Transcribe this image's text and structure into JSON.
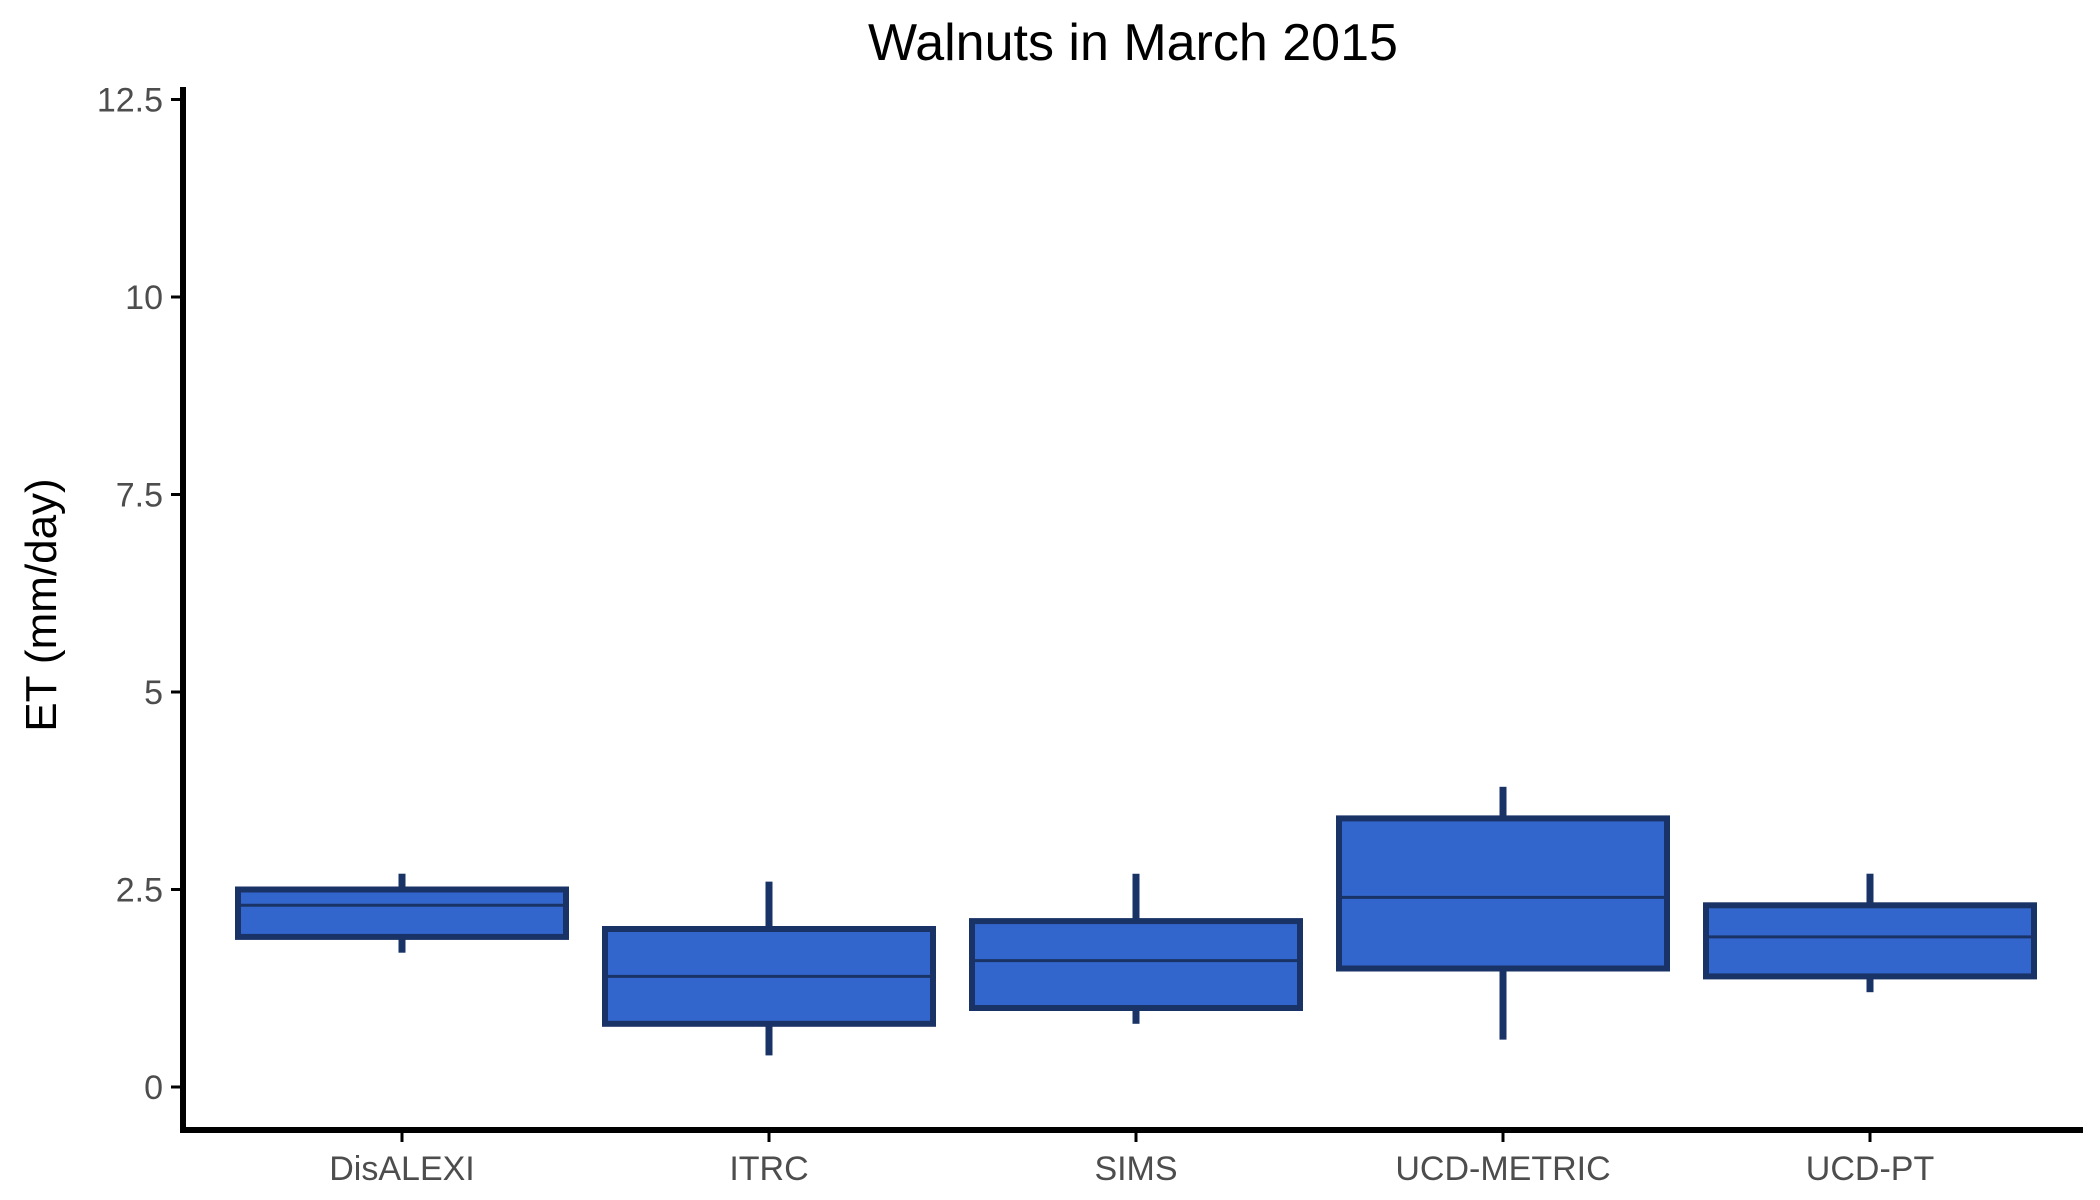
{
  "chart_data": {
    "type": "boxplot",
    "title": "Walnuts in March 2015",
    "xlabel": "",
    "ylabel": "ET (mm/day)",
    "ylim": [
      0,
      12.5
    ],
    "yticks": [
      0,
      2.5,
      5,
      7.5,
      10,
      12.5
    ],
    "ytick_labels": [
      "0",
      "2.5",
      "5",
      "7.5",
      "10",
      "12.5"
    ],
    "grid": false,
    "legend": "none",
    "colors": {
      "fill": "#3366cc",
      "outline": "#1a3366",
      "axis": "#000000"
    },
    "categories": [
      "DisALEXI",
      "ITRC",
      "SIMS",
      "UCD-METRIC",
      "UCD-PT"
    ],
    "boxes": [
      {
        "category": "DisALEXI",
        "min": 1.7,
        "q1": 1.9,
        "median": 2.3,
        "q3": 2.5,
        "max": 2.7
      },
      {
        "category": "ITRC",
        "min": 0.4,
        "q1": 0.8,
        "median": 1.4,
        "q3": 2.0,
        "max": 2.6
      },
      {
        "category": "SIMS",
        "min": 0.8,
        "q1": 1.0,
        "median": 1.6,
        "q3": 2.1,
        "max": 2.7
      },
      {
        "category": "UCD-METRIC",
        "min": 0.6,
        "q1": 1.5,
        "median": 2.4,
        "q3": 3.4,
        "max": 3.8
      },
      {
        "category": "UCD-PT",
        "min": 1.2,
        "q1": 1.4,
        "median": 1.9,
        "q3": 2.3,
        "max": 2.7
      }
    ]
  }
}
